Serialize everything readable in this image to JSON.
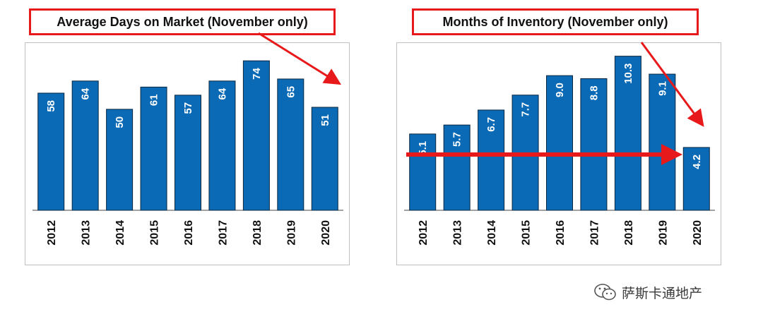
{
  "chart_data": [
    {
      "type": "bar",
      "title": "Average Days on Market (November only)",
      "categories": [
        "2012",
        "2013",
        "2014",
        "2015",
        "2016",
        "2017",
        "2018",
        "2019",
        "2020"
      ],
      "values": [
        58,
        64,
        50,
        61,
        57,
        64,
        74,
        65,
        51
      ],
      "value_labels": [
        "58",
        "64",
        "50",
        "61",
        "57",
        "64",
        "74",
        "65",
        "51"
      ],
      "bar_color": "#0a6ab5",
      "ylim": [
        0,
        80
      ],
      "grid": false
    },
    {
      "type": "bar",
      "title": "Months of Inventory (November only)",
      "categories": [
        "2012",
        "2013",
        "2014",
        "2015",
        "2016",
        "2017",
        "2018",
        "2019",
        "2020"
      ],
      "values": [
        5.1,
        5.7,
        6.7,
        7.7,
        9.0,
        8.8,
        10.3,
        9.1,
        4.2
      ],
      "value_labels": [
        "5.1",
        "5.7",
        "6.7",
        "7.7",
        "9.0",
        "8.8",
        "10.3",
        "9.1",
        "4.2"
      ],
      "bar_color": "#0a6ab5",
      "ylim": [
        0,
        10.8
      ],
      "grid": false
    }
  ],
  "annotations": {
    "arrow_color": "#e8191a"
  },
  "watermark": {
    "text": "萨斯卡通地产",
    "icon": "wechat-icon"
  }
}
